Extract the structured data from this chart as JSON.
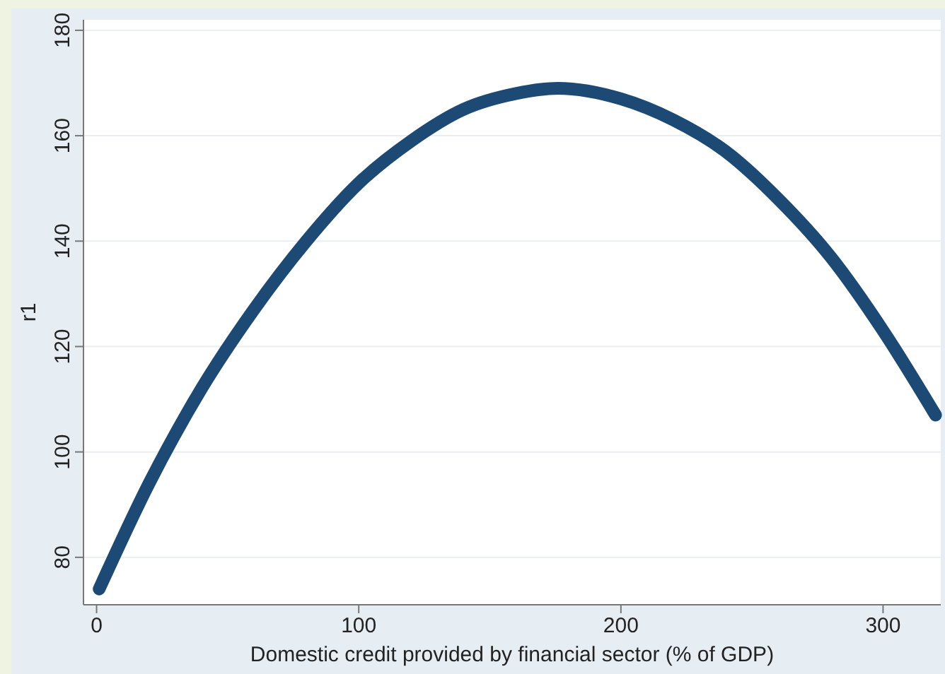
{
  "chart_data": {
    "type": "line",
    "xlabel": "Domestic credit provided by financial sector (% of GDP)",
    "ylabel": "r1",
    "x": [
      1,
      20,
      40,
      60,
      80,
      100,
      120,
      140,
      160,
      176,
      200,
      220,
      240,
      260,
      280,
      300,
      320
    ],
    "series": [
      {
        "color": "#1c4a75",
        "values": [
          74,
          94,
          112,
          127,
          140,
          151,
          159,
          165,
          168,
          169,
          167,
          163,
          157,
          148,
          137,
          123,
          107
        ]
      }
    ],
    "xlim": [
      -5,
      322
    ],
    "xticks": [
      0,
      100,
      200,
      300
    ],
    "ylim": [
      71,
      182
    ],
    "yticks": [
      80,
      100,
      120,
      140,
      160,
      180
    ],
    "grid": "y",
    "marker": "none",
    "line_style": "solid"
  }
}
